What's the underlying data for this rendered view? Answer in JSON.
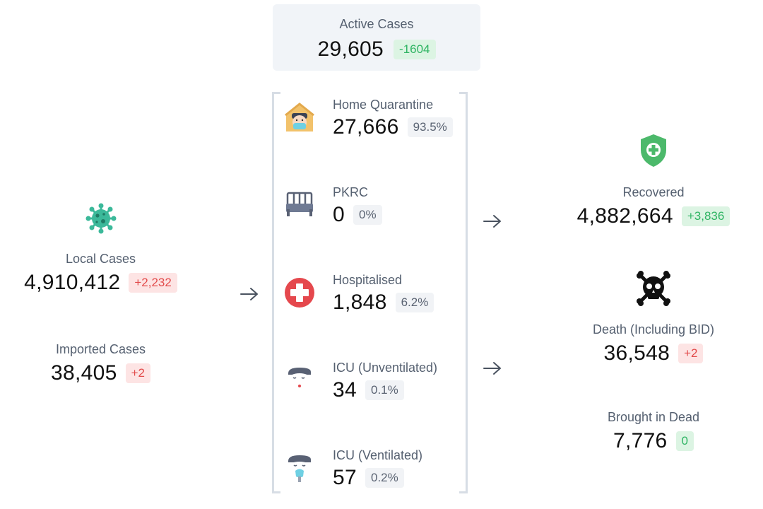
{
  "active": {
    "label": "Active Cases",
    "value": "29,605",
    "change": "-1604"
  },
  "local": {
    "label": "Local Cases",
    "value": "4,910,412",
    "change": "+2,232",
    "icon": "virus-icon"
  },
  "imported": {
    "label": "Imported Cases",
    "value": "38,405",
    "change": "+2"
  },
  "breakdown": [
    {
      "label": "Home Quarantine",
      "value": "27,666",
      "percent": "93.5%",
      "icon": "house-mask-icon"
    },
    {
      "label": "PKRC",
      "value": "0",
      "percent": "0%",
      "icon": "bed-icon"
    },
    {
      "label": "Hospitalised",
      "value": "1,848",
      "percent": "6.2%",
      "icon": "medical-cross-icon"
    },
    {
      "label": "ICU (Unventilated)",
      "value": "34",
      "percent": "0.1%",
      "icon": "patient-icon"
    },
    {
      "label": "ICU (Ventilated)",
      "value": "57",
      "percent": "0.2%",
      "icon": "ventilated-patient-icon"
    }
  ],
  "recovered": {
    "label": "Recovered",
    "value": "4,882,664",
    "change": "+3,836",
    "icon": "shield-plus-icon"
  },
  "death": {
    "label": "Death (Including BID)",
    "value": "36,548",
    "change": "+2",
    "icon": "skull-crossbones-icon"
  },
  "bid": {
    "label": "Brought in Dead",
    "value": "7,776",
    "change": "0"
  },
  "colors": {
    "badge_red_bg": "#fde4e4",
    "badge_red_text": "#e24b4b",
    "badge_green_bg": "#dcf4e3",
    "badge_green_text": "#2fb463",
    "badge_gray_bg": "#f1f3f6",
    "virus": "#3bb99a",
    "shield": "#4cb96b",
    "hospital": "#e5484d"
  }
}
